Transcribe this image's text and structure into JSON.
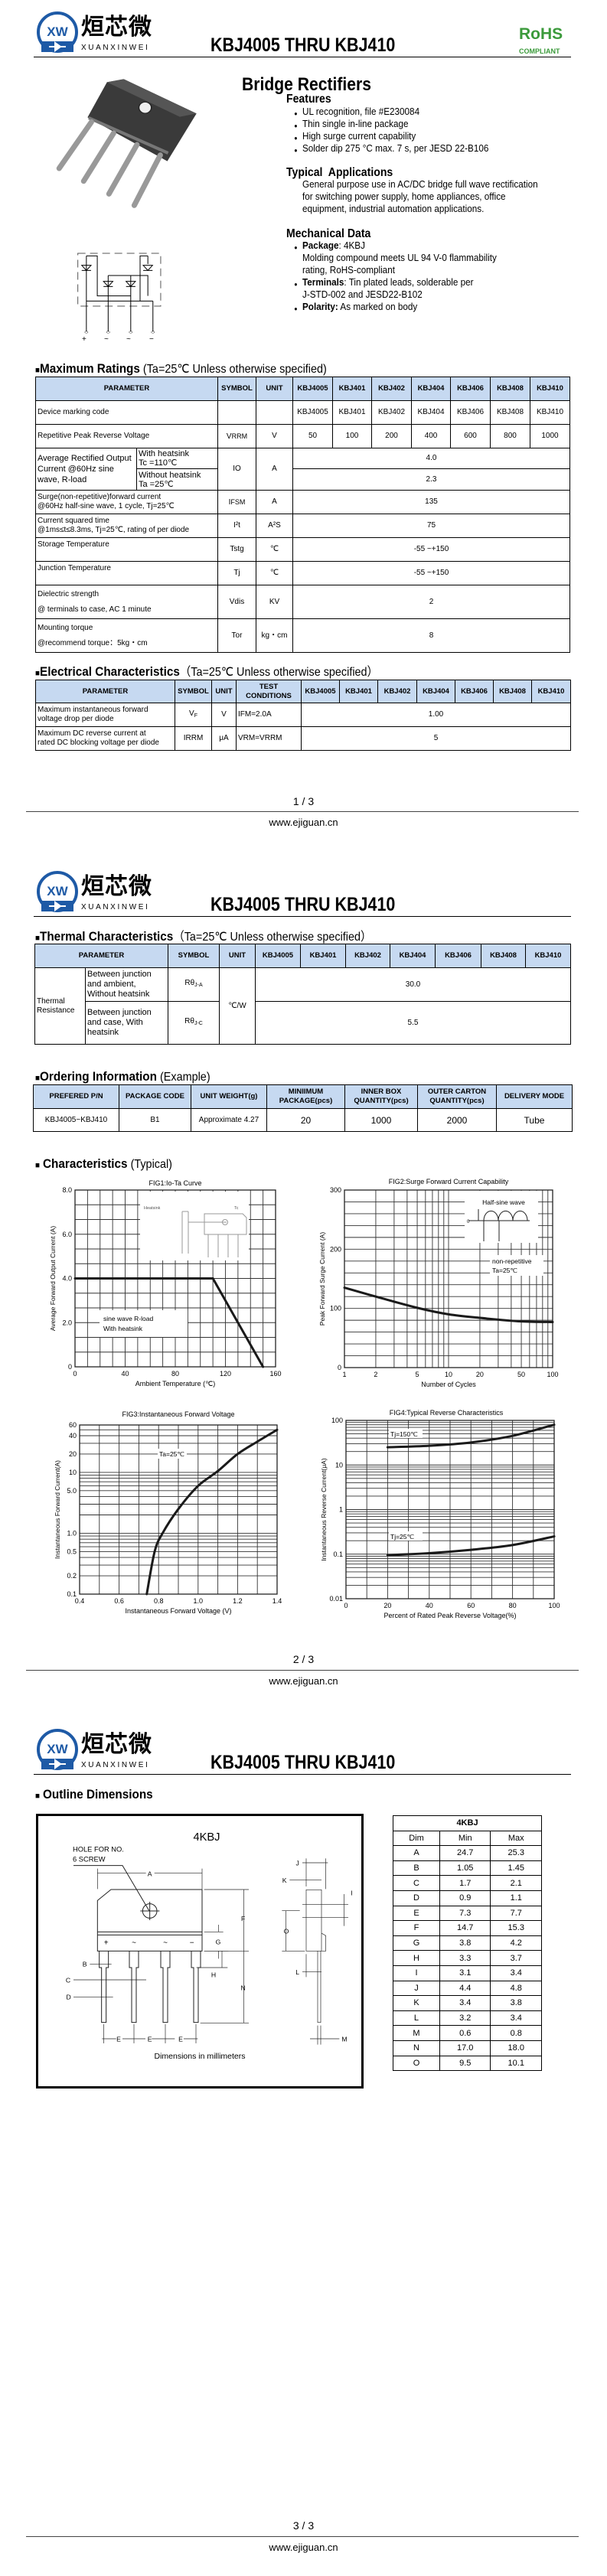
{
  "header": {
    "logo_mark": "XW",
    "logo_cn": "烜芯微",
    "logo_en": "XUANXINWEI",
    "title": "KBJ4005 THRU KBJ410"
  },
  "rohs": {
    "label": "RoHS",
    "sub": "COMPLIANT",
    "color": "#3b9a3b"
  },
  "intro": {
    "heading": "Bridge Rectifiers",
    "features_heading": "Features",
    "features": [
      "UL recognition, file #E230084",
      "Thin single in-line package",
      "High surge current capability",
      "Solder dip 275 °C max. 7 s, per JESD 22-B106"
    ],
    "applications_heading": "Typical  Applications",
    "applications_lines": [
      "General purpose use in AC/DC bridge full wave rectification",
      "for switching power supply, home appliances, office",
      "equipment, industrial automation applications."
    ],
    "mechanical_heading": "Mechanical Data",
    "mechanical": [
      {
        "label": "Package",
        "lines": [
          ": 4KBJ",
          "Molding compound meets UL 94 V-0 flammability",
          "rating, RoHS-compliant"
        ]
      },
      {
        "label": "Terminals",
        "lines": [
          ": Tin plated leads, solderable per",
          "J-STD-002 and JESD22-B102"
        ]
      },
      {
        "label": "Polarity:",
        "lines": [
          " As marked on body"
        ]
      }
    ],
    "pin_labels": [
      "+",
      "~",
      "~",
      "−"
    ]
  },
  "models": [
    "KBJ4005",
    "KBJ401",
    "KBJ402",
    "KBJ404",
    "KBJ406",
    "KBJ408",
    "KBJ410"
  ],
  "max_ratings": {
    "title": "Maximum Ratings",
    "condition": "(Ta=25℃ Unless otherwise specified)",
    "headers": {
      "parameter": "PARAMETER",
      "symbol": "SYMBOL",
      "unit": "UNIT"
    },
    "marking": {
      "param": "Device marking code",
      "codes": [
        "KBJ4005",
        "KBJ401",
        "KBJ402",
        "KBJ404",
        "KBJ406",
        "KBJ408",
        "KBJ410"
      ]
    },
    "vrrm": {
      "param": "Repetitive Peak Reverse Voltage",
      "sym": "V",
      "sym_sub": "RRM",
      "unit": "V",
      "values": [
        "50",
        "100",
        "200",
        "400",
        "600",
        "800",
        "1000"
      ]
    },
    "io": {
      "param": "Average Rectified Output Current @60Hz sine wave, R-load",
      "cond1": "With heatsink",
      "cond1b": "Tc =110℃",
      "cond2": "Without heatsink",
      "cond2b": "Ta =25℃",
      "sym": "IO",
      "unit": "A",
      "value1": "4.0",
      "value2": "2.3"
    },
    "ifsm": {
      "param1": "Surge(non-repetitive)forward current",
      "param2": "@60Hz half-sine wave, 1 cycle, Tj=25℃",
      "sym": "I",
      "sym_sub": "FSM",
      "unit": "A",
      "value": "135"
    },
    "i2t": {
      "param1": "Current squared time",
      "param2": "@1ms≤t≤8.3ms, Tj=25℃, rating of per diode",
      "sym": "I²t",
      "unit": "A²S",
      "value": "75"
    },
    "tstg": {
      "param": "Storage Temperature",
      "sym": "Tstg",
      "unit": "℃",
      "value": "-55 ~+150"
    },
    "tj": {
      "param": "Junction Temperature",
      "sym": "Tj",
      "unit": "℃",
      "value": "-55 ~+150"
    },
    "vdis": {
      "param1": "Dielectric strength",
      "param2": "@ terminals to case, AC 1 minute",
      "sym": "Vdis",
      "unit": "KV",
      "value": "2"
    },
    "tor": {
      "param1": "Mounting torque",
      "param2": "@recommend torque：5kg・cm",
      "sym": "Tor",
      "unit": "kg・cm",
      "value": "8"
    }
  },
  "electrical": {
    "title": "Electrical Characteristics",
    "condition": "（Ta=25℃ Unless otherwise specified）",
    "headers": {
      "parameter": "PARAMETER",
      "symbol": "SYMBOL",
      "unit": "UNIT",
      "test1": "TEST",
      "test2": "CONDITIONS"
    },
    "rows": [
      {
        "param1": "Maximum instantaneous forward",
        "param2": "voltage drop per diode",
        "sym": "V",
        "sym_sub": "F",
        "unit": "V",
        "test": "IFM=2.0A",
        "value": "1.00"
      },
      {
        "param1": "Maximum DC reverse current at",
        "param2": "rated DC blocking voltage per diode",
        "sym": "IRRM",
        "unit": "μA",
        "test": "VRM=VRRM",
        "value": "5"
      }
    ]
  },
  "thermal": {
    "title": "Thermal Characteristics",
    "condition": "（Ta=25℃ Unless otherwise specified）",
    "headers": {
      "parameter": "PARAMETER",
      "symbol": "SYMBOL",
      "unit": "UNIT"
    },
    "group": "Thermal Resistance",
    "unit": "℃/W",
    "rows": [
      {
        "desc": "Between junction and ambient, Without heatsink",
        "sym": "Rθ",
        "sym_sub": "J-A",
        "value": "30.0"
      },
      {
        "desc": "Between junction and case, With heatsink",
        "sym": "Rθ",
        "sym_sub": "J-C",
        "value": "5.5"
      }
    ]
  },
  "ordering": {
    "title": "Ordering Information",
    "subtitle": "(Example)",
    "headers": [
      "PREFERED P/N",
      "PACKAGE CODE",
      "UNIT WEIGHT(g)",
      "MINIIMUM PACKAGE(pcs)",
      "INNER BOX QUANTITY(pcs)",
      "OUTER CARTON QUANTITY(pcs)",
      "DELIVERY MODE"
    ],
    "row": [
      "KBJ4005~KBJ410",
      "B1",
      "Approximate 4.27",
      "20",
      "1000",
      "2000",
      "Tube"
    ]
  },
  "characteristics": {
    "title": "Characteristics",
    "subtitle": "(Typical)"
  },
  "chart_data": [
    {
      "type": "line",
      "title": "FIG1:Io-Ta Curve",
      "xlabel": "Ambient Temperature (℃)",
      "ylabel": "Average Forward Output Current (A)",
      "xscale": "linear",
      "yscale": "linear",
      "xlim": [
        0,
        160
      ],
      "ylim": [
        0,
        8
      ],
      "x_ticks": [
        "0",
        "40",
        "80",
        "120",
        "160"
      ],
      "y_ticks": [
        "0",
        "2.0",
        "4.0",
        "6.0",
        "8.0"
      ],
      "grid": true,
      "series": [
        {
          "points": [
            [
              0,
              4.0
            ],
            [
              110,
              4.0
            ],
            [
              150,
              0
            ]
          ]
        }
      ],
      "annotations": [
        "sine wave R-load",
        "With heatsink"
      ],
      "inset_labels": [
        "Heatsink",
        "Tc"
      ]
    },
    {
      "type": "line",
      "title": "FIG2:Surge Forward Current Capability",
      "xlabel": "Number of Cycles",
      "ylabel": "Peak Forward Surge Current (A)",
      "xscale": "log",
      "yscale": "linear",
      "xlim": [
        1,
        100
      ],
      "ylim": [
        0,
        300
      ],
      "x_ticks": [
        "1",
        "2",
        "5",
        "10",
        "20",
        "50",
        "100"
      ],
      "y_ticks": [
        "0",
        "100",
        "200",
        "300"
      ],
      "grid": true,
      "series": [
        {
          "points": [
            [
              1,
              135
            ],
            [
              2,
              120
            ],
            [
              5,
              101
            ],
            [
              10,
              90
            ],
            [
              20,
              84
            ],
            [
              50,
              78
            ],
            [
              100,
              77
            ]
          ]
        }
      ],
      "annotations": [
        "Half-sine wave",
        "non-repetitive",
        "Ta=25℃"
      ],
      "inset_labels": [
        "0"
      ]
    },
    {
      "type": "line",
      "title": "FIG3:Instantaneous Forward Voltage",
      "xlabel": "Instantaneous Forward Voltage (V)",
      "ylabel": "Instantaneous Forward Current(A)",
      "xscale": "linear",
      "yscale": "log",
      "xlim": [
        0.4,
        1.4
      ],
      "ylim": [
        0.1,
        60
      ],
      "x_ticks": [
        "0.4",
        "0.6",
        "0.8",
        "1.0",
        "1.2",
        "1.4"
      ],
      "y_ticks": [
        "0.1",
        "0.2",
        "0.5",
        "1.0",
        "5.0",
        "10",
        "20",
        "40",
        "60"
      ],
      "grid": true,
      "series": [
        {
          "points": [
            [
              0.74,
              0.1
            ],
            [
              0.78,
              0.5
            ],
            [
              0.82,
              1.0
            ],
            [
              0.9,
              2.5
            ],
            [
              1.0,
              6
            ],
            [
              1.1,
              10.5
            ],
            [
              1.2,
              20
            ],
            [
              1.3,
              32
            ],
            [
              1.4,
              50
            ]
          ]
        }
      ],
      "annotations": [
        "Ta=25℃"
      ]
    },
    {
      "type": "line",
      "title": "FIG4:Typical Reverse Characteristics",
      "xlabel": "Percent of Rated Peak Reverse Voltage(%)",
      "ylabel": "Instantaneous Reverse Current(μA)",
      "xscale": "linear",
      "yscale": "log",
      "xlim": [
        0,
        100
      ],
      "ylim": [
        0.01,
        100
      ],
      "x_ticks": [
        "0",
        "20",
        "40",
        "60",
        "80",
        "100"
      ],
      "y_ticks": [
        "0.01",
        "0.1",
        "1",
        "10",
        "100"
      ],
      "grid": true,
      "series": [
        {
          "name": "Tj=150℃",
          "points": [
            [
              20,
              25
            ],
            [
              40,
              27
            ],
            [
              60,
              32
            ],
            [
              80,
              45
            ],
            [
              100,
              80
            ]
          ]
        },
        {
          "name": "Tj=25℃",
          "points": [
            [
              20,
              0.095
            ],
            [
              40,
              0.105
            ],
            [
              60,
              0.125
            ],
            [
              80,
              0.16
            ],
            [
              100,
              0.25
            ]
          ]
        }
      ]
    }
  ],
  "outline": {
    "title": "Outline Dimensions",
    "drawing_title": "4KBJ",
    "hole_note": [
      "HOLE FOR NO.",
      "6 SCREW"
    ],
    "dim_letters": [
      "A",
      "B",
      "C",
      "D",
      "E",
      "F",
      "G",
      "H",
      "I",
      "J",
      "K",
      "L",
      "M",
      "N",
      "O"
    ],
    "caption": "Dimensions in millimeters",
    "table_title": "4KBJ",
    "table_headers": [
      "Dim",
      "Min",
      "Max"
    ],
    "table_rows": [
      [
        "A",
        "24.7",
        "25.3"
      ],
      [
        "B",
        "1.05",
        "1.45"
      ],
      [
        "C",
        "1.7",
        "2.1"
      ],
      [
        "D",
        "0.9",
        "1.1"
      ],
      [
        "E",
        "7.3",
        "7.7"
      ],
      [
        "F",
        "14.7",
        "15.3"
      ],
      [
        "G",
        "3.8",
        "4.2"
      ],
      [
        "H",
        "3.3",
        "3.7"
      ],
      [
        "I",
        "3.1",
        "3.4"
      ],
      [
        "J",
        "4.4",
        "4.8"
      ],
      [
        "K",
        "3.4",
        "3.8"
      ],
      [
        "L",
        "3.2",
        "3.4"
      ],
      [
        "M",
        "0.6",
        "0.8"
      ],
      [
        "N",
        "17.0",
        "18.0"
      ],
      [
        "O",
        "9.5",
        "10.1"
      ]
    ]
  },
  "footer": {
    "pages": [
      "1 / 3",
      "2 / 3",
      "3 / 3"
    ],
    "url": "www.ejiguan.cn"
  }
}
